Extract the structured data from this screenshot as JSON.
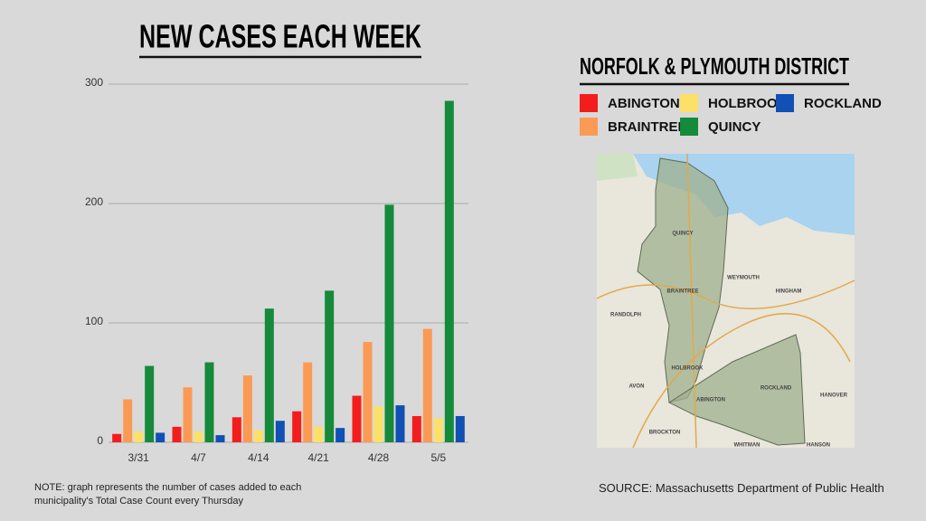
{
  "chart_data": {
    "type": "bar",
    "title": "NEW CASES EACH WEEK",
    "legend_title": "NORFOLK & PLYMOUTH DISTRICT",
    "categories": [
      "3/31",
      "4/7",
      "4/14",
      "4/21",
      "4/28",
      "5/5"
    ],
    "series": [
      {
        "name": "ABINGTON",
        "color": "#f41d1d",
        "values": [
          7,
          13,
          21,
          26,
          39,
          22
        ]
      },
      {
        "name": "BRAINTREE",
        "color": "#fb9a55",
        "values": [
          36,
          46,
          56,
          67,
          84,
          95
        ]
      },
      {
        "name": "HOLBROOK",
        "color": "#fde068",
        "values": [
          9,
          9,
          10,
          13,
          30,
          20
        ]
      },
      {
        "name": "QUINCY",
        "color": "#158a3b",
        "values": [
          64,
          67,
          112,
          127,
          199,
          286
        ]
      },
      {
        "name": "ROCKLAND",
        "color": "#1150b4",
        "values": [
          8,
          6,
          18,
          12,
          31,
          22
        ]
      }
    ],
    "ylim": [
      0,
      300
    ],
    "yticks": [
      0,
      100,
      200,
      300
    ],
    "grid": true,
    "note": "NOTE: graph represents the number of cases added to each municipality's Total Case Count every Thursday",
    "source": "SOURCE: Massachusetts Department of Public Health"
  },
  "map": {
    "labels": [
      "QUINCY",
      "WEYMOUTH",
      "BRAINTREE",
      "RANDOLPH",
      "HINGHAM",
      "HOLBROOK",
      "AVON",
      "ABINGTON",
      "ROCKLAND",
      "HANOVER",
      "BROCKTON",
      "WHITMAN",
      "HANSON"
    ]
  }
}
